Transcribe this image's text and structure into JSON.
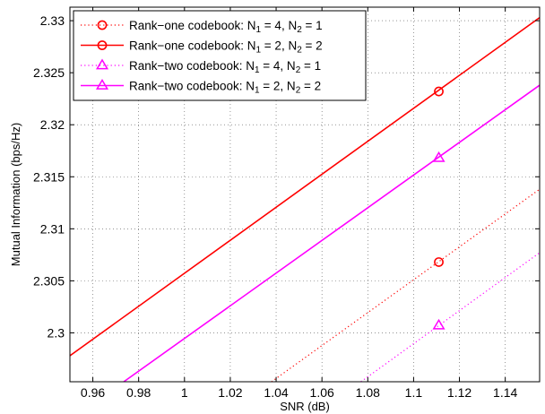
{
  "chart_data": {
    "type": "line",
    "xlabel": "SNR (dB)",
    "ylabel": "Mutual Information (bps/Hz)",
    "xlim": [
      0.95,
      1.155
    ],
    "ylim": [
      2.2953,
      2.3313
    ],
    "xticks": [
      0.96,
      0.98,
      1,
      1.02,
      1.04,
      1.06,
      1.08,
      1.1,
      1.12,
      1.14
    ],
    "xtick_labels": [
      "0.96",
      "0.98",
      "1",
      "1.02",
      "1.04",
      "1.06",
      "1.08",
      "1.1",
      "1.12",
      "1.14"
    ],
    "yticks": [
      2.3,
      2.305,
      2.31,
      2.315,
      2.32,
      2.325,
      2.33
    ],
    "ytick_labels": [
      "2.3",
      "2.305",
      "2.31",
      "2.315",
      "2.32",
      "2.325",
      "2.33"
    ],
    "grid": true,
    "legend_position": "top-left",
    "series": [
      {
        "legend_main": "Rank−one codebook: N",
        "legend_sub1": "1",
        "legend_mid": " = 4, N",
        "legend_sub2": "2",
        "legend_end": " = 1",
        "color": "#ff0000",
        "line_style": "dotted",
        "marker": "circle",
        "x": [
          1.038,
          1.155
        ],
        "y": [
          2.2953,
          2.3138
        ],
        "marker_x": 1.111,
        "marker_y": 2.3068
      },
      {
        "legend_main": "Rank−one codebook: N",
        "legend_sub1": "1",
        "legend_mid": " = 2, N",
        "legend_sub2": "2",
        "legend_end": " = 2",
        "color": "#ff0000",
        "line_style": "solid",
        "marker": "circle",
        "x": [
          0.95,
          1.155
        ],
        "y": [
          2.2978,
          2.3303
        ],
        "marker_x": 1.111,
        "marker_y": 2.3232
      },
      {
        "legend_main": "Rank−two codebook: N",
        "legend_sub1": "1",
        "legend_mid": " = 4, N",
        "legend_sub2": "2",
        "legend_end": " = 1",
        "color": "#ff00ff",
        "line_style": "dotted",
        "marker": "triangle",
        "x": [
          1.077,
          1.155
        ],
        "y": [
          2.2953,
          2.3077
        ],
        "marker_x": 1.111,
        "marker_y": 2.3007
      },
      {
        "legend_main": "Rank−two codebook: N",
        "legend_sub1": "1",
        "legend_mid": " = 2, N",
        "legend_sub2": "2",
        "legend_end": " = 2",
        "color": "#ff00ff",
        "line_style": "solid",
        "marker": "triangle",
        "x": [
          0.9735,
          1.155
        ],
        "y": [
          2.2953,
          2.3238
        ],
        "marker_x": 1.111,
        "marker_y": 2.3168
      }
    ]
  }
}
